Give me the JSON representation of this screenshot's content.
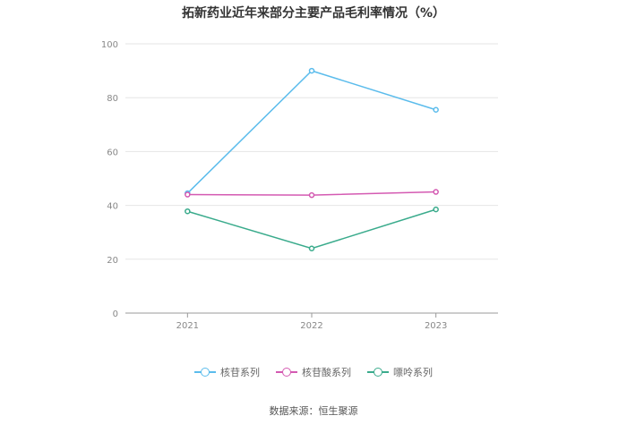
{
  "chart_data": {
    "type": "line",
    "title": "拓新药业近年来部分主要产品毛利率情况（%）",
    "categories": [
      "2021",
      "2022",
      "2023"
    ],
    "ylim": [
      0,
      100
    ],
    "yticks": [
      0,
      20,
      40,
      60,
      80,
      100
    ],
    "grid": true,
    "legend_position": "bottom",
    "series": [
      {
        "name": "核苷系列",
        "color": "#5bbcec",
        "values": [
          44.5,
          90,
          75.5
        ]
      },
      {
        "name": "核苷酸系列",
        "color": "#d45ab2",
        "values": [
          44,
          43.8,
          45
        ]
      },
      {
        "name": "嘌呤系列",
        "color": "#3aab8c",
        "values": [
          37.8,
          24,
          38.5
        ]
      }
    ]
  },
  "source_text": "数据来源：恒生聚源"
}
